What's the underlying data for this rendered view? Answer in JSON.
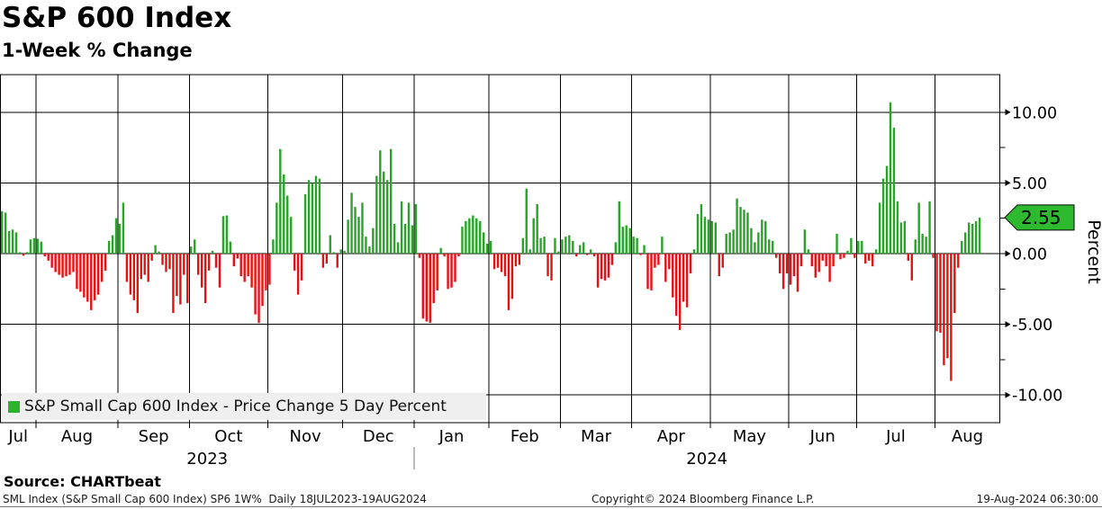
{
  "header": {
    "title": "S&P 600 Index",
    "subtitle": "1-Week % Change"
  },
  "legend": {
    "label": "S&P Small Cap 600 Index - Price Change 5 Day Percent",
    "swatch_color": "#2db22d"
  },
  "right_axis": {
    "unit_label": "Percent",
    "tick_labels": [
      "10.00",
      "5.00",
      "0.00",
      "-5.00",
      "-10.00"
    ],
    "badge": {
      "text": "2.55",
      "fill": "#2eba2e"
    }
  },
  "footer": {
    "source": "Source: CHARTbeat",
    "left": "SML Index (S&P Small Cap 600 Index) SP6 1W%  Daily 18JUL2023-19AUG2024",
    "center": "Copyright© 2024 Bloomberg Finance L.P.",
    "right": "19-Aug-2024 06:30:00"
  },
  "chart_data": {
    "type": "bar",
    "title": "S&P 600 Index",
    "subtitle": "1-Week % Change",
    "series_name": "S&P Small Cap 600 Index - Price Change 5 Day Percent",
    "ylabel": "Percent",
    "ylim": [
      -12,
      12.7
    ],
    "grid": true,
    "y_major_gridlines": [
      10,
      5,
      0,
      -5,
      -10
    ],
    "y_major_tick_labels": [
      "10.00",
      "5.00",
      "0.00",
      "-5.00",
      "-10.00"
    ],
    "y_minor_ticks": [
      7.5,
      2.5,
      -2.5,
      -7.5
    ],
    "last_value": 2.55,
    "date_range": "18JUL2023-19AUG2024",
    "frequency": "Daily",
    "colors": {
      "positive": "#26a526",
      "negative": "#e31111"
    },
    "months": [
      {
        "label": "Jul",
        "year": "2023",
        "days": 10
      },
      {
        "label": "Aug",
        "year": "2023",
        "days": 23
      },
      {
        "label": "Sep",
        "year": "2023",
        "days": 20
      },
      {
        "label": "Oct",
        "year": "2023",
        "days": 22
      },
      {
        "label": "Nov",
        "year": "2023",
        "days": 21
      },
      {
        "label": "Dec",
        "year": "2023",
        "days": 20
      },
      {
        "label": "Jan",
        "year": "2024",
        "days": 21
      },
      {
        "label": "Feb",
        "year": "2024",
        "days": 20
      },
      {
        "label": "Mar",
        "year": "2024",
        "days": 20
      },
      {
        "label": "Apr",
        "year": "2024",
        "days": 22
      },
      {
        "label": "May",
        "year": "2024",
        "days": 22
      },
      {
        "label": "Jun",
        "year": "2024",
        "days": 19
      },
      {
        "label": "Jul",
        "year": "2024",
        "days": 22
      },
      {
        "label": "Aug",
        "year": "2024",
        "days": 13
      }
    ],
    "year_labels": [
      {
        "text": "2023",
        "first_month_index": 0,
        "last_month_index": 5
      },
      {
        "text": "2024",
        "first_month_index": 6,
        "last_month_index": 13
      }
    ],
    "values": [
      3.0,
      2.9,
      1.6,
      1.7,
      1.5,
      0.1,
      -0.15,
      0.1,
      1.0,
      1.1,
      1.05,
      0.85,
      -0.2,
      -0.5,
      -1.0,
      -1.3,
      -1.5,
      -1.7,
      -1.6,
      -1.5,
      -1.3,
      -2.5,
      -2.7,
      -3.1,
      -3.4,
      -4.0,
      -3.3,
      -2.9,
      -2.0,
      -1.2,
      0.9,
      1.3,
      2.5,
      2.1,
      3.6,
      -2.0,
      -2.9,
      -3.3,
      -4.2,
      -1.8,
      -1.5,
      -2.0,
      -0.5,
      0.6,
      0.15,
      -0.8,
      -1.3,
      -1.1,
      -4.2,
      -3.0,
      -3.6,
      -1.5,
      -3.5,
      0.5,
      1.0,
      -1.5,
      -2.4,
      -3.5,
      -1.2,
      0.2,
      -1.0,
      -2.4,
      2.65,
      2.7,
      0.85,
      -0.9,
      -0.35,
      -1.6,
      -2.0,
      -1.6,
      -2.4,
      -4.3,
      -4.9,
      -3.7,
      -2.6,
      -2.2,
      1.0,
      3.6,
      7.4,
      5.6,
      4.1,
      2.6,
      -1.2,
      -2.9,
      -1.9,
      4.2,
      5.2,
      5.0,
      5.5,
      5.3,
      -1.0,
      -0.7,
      1.3,
      0.1,
      -1.0,
      0.3,
      0.2,
      2.4,
      4.3,
      3.3,
      2.6,
      3.6,
      1.2,
      0.5,
      1.8,
      5.5,
      7.3,
      5.8,
      5.2,
      7.4,
      2.1,
      0.8,
      3.7,
      2.1,
      3.6,
      2.0,
      3.5,
      -0.3,
      -4.6,
      -4.8,
      -4.9,
      -3.5,
      -2.6,
      0.4,
      -0.2,
      -2.5,
      -2.4,
      -2.0,
      -0.2,
      1.9,
      2.3,
      2.5,
      2.7,
      2.5,
      2.3,
      1.5,
      0.7,
      0.9,
      -1.1,
      -1.0,
      -1.3,
      -1.6,
      -4.0,
      -3.2,
      -0.9,
      -0.8,
      1.1,
      4.6,
      0.3,
      2.5,
      3.5,
      1.1,
      1.2,
      -1.6,
      -1.9,
      1.1,
      0.15,
      1.0,
      1.2,
      1.3,
      0.9,
      -0.2,
      0.6,
      0.8,
      -0.1,
      0.3,
      -0.2,
      -2.4,
      -1.8,
      -1.9,
      -1.7,
      -0.8,
      0.8,
      3.7,
      1.9,
      2.0,
      1.8,
      1.2,
      1.1,
      -0.1,
      0.6,
      -2.5,
      -2.6,
      -1.0,
      -0.8,
      1.2,
      -2.0,
      -1.1,
      -3.1,
      -4.4,
      -5.4,
      -3.4,
      -3.8,
      -1.4,
      0.3,
      2.8,
      3.5,
      2.6,
      2.4,
      2.3,
      2.2,
      -1.6,
      -1.0,
      1.4,
      1.5,
      1.7,
      3.9,
      3.3,
      3.1,
      2.9,
      1.8,
      0.8,
      1.5,
      2.4,
      2.3,
      1.0,
      0.9,
      -0.3,
      -1.4,
      -2.5,
      -1.4,
      -2.2,
      -1.6,
      -2.7,
      -0.9,
      1.7,
      0.3,
      -0.9,
      -1.7,
      -1.3,
      -0.5,
      -0.9,
      -2.0,
      -0.9,
      1.4,
      -0.4,
      -0.3,
      0.2,
      1.1,
      -0.3,
      0.9,
      0.9,
      -0.7,
      -0.5,
      -0.9,
      0.3,
      3.6,
      5.3,
      6.2,
      10.7,
      8.9,
      3.7,
      2.2,
      2.3,
      -0.5,
      -1.9,
      1.0,
      3.6,
      1.4,
      1.2,
      3.7,
      -0.3,
      -5.5,
      -5.6,
      -7.9,
      -7.4,
      -9.0,
      -4.2,
      -1.0,
      0.9,
      1.5,
      2.2,
      2.1,
      2.3,
      2.55
    ]
  }
}
